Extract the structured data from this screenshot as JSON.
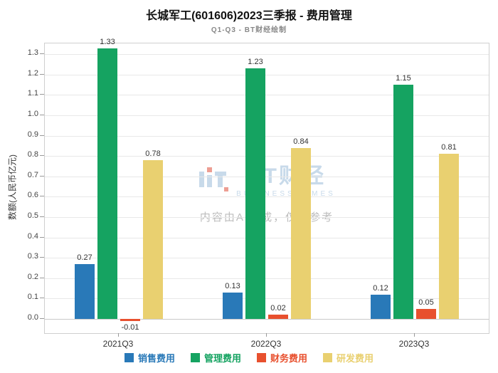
{
  "watermark": {
    "logo_text": "BT财经",
    "logo_subtext": "BUSINESS TIMES",
    "ai_notice": "内容由AI生成，仅供参考"
  },
  "chart_data": {
    "type": "bar",
    "title": "长城军工(601606)2023三季报 - 费用管理",
    "subtitle": "Q1-Q3 - BT财经绘制",
    "ylabel": "数额(人民币亿元)",
    "categories": [
      "2021Q3",
      "2022Q3",
      "2023Q3"
    ],
    "series": [
      {
        "name": "销售费用",
        "color": "#2979b8",
        "values": [
          0.27,
          0.13,
          0.12
        ]
      },
      {
        "name": "管理费用",
        "color": "#15a361",
        "values": [
          1.33,
          1.23,
          1.15
        ]
      },
      {
        "name": "财务费用",
        "color": "#e8502e",
        "values": [
          -0.01,
          0.02,
          0.05
        ]
      },
      {
        "name": "研发费用",
        "color": "#e9d070",
        "values": [
          0.78,
          0.84,
          0.81
        ]
      }
    ],
    "ylim": [
      -0.07,
      1.353
    ],
    "yticks": [
      0.0,
      0.1,
      0.2,
      0.3,
      0.4,
      0.5,
      0.6,
      0.7,
      0.8,
      0.9,
      1.0,
      1.1,
      1.2,
      1.3
    ],
    "grid": true,
    "legend_position": "bottom",
    "value_label_decimals": 2
  }
}
